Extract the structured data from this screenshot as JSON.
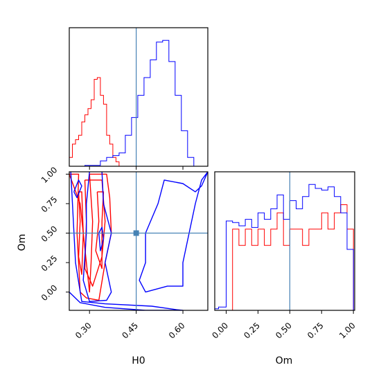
{
  "chart_data": {
    "type": "corner",
    "parameters": [
      "H0",
      "Om"
    ],
    "truths": {
      "H0": 0.45,
      "Om": 0.5
    },
    "truth_color": "#4682b4",
    "series": [
      {
        "color": "#ff0000"
      },
      {
        "color": "#0000ff"
      }
    ],
    "panels": [
      {
        "id": "hist-h0",
        "kind": "histogram",
        "xlim": [
          0.235,
          0.68
        ],
        "x_ticks": [
          0.3,
          0.45,
          0.6
        ],
        "series": [
          {
            "color": "#ff0000",
            "bin_edges": [
              0.235,
              0.245,
              0.255,
              0.265,
              0.275,
              0.285,
              0.295,
              0.305,
              0.315,
              0.325,
              0.335,
              0.345,
              0.355,
              0.365,
              0.375,
              0.385,
              0.395
            ],
            "counts": [
              10,
              25,
              30,
              35,
              50,
              58,
              65,
              75,
              98,
              100,
              80,
              70,
              35,
              25,
              10,
              5
            ]
          },
          {
            "color": "#0000ff",
            "bin_edges": [
              0.285,
              0.335,
              0.355,
              0.375,
              0.395,
              0.415,
              0.435,
              0.455,
              0.475,
              0.495,
              0.515,
              0.535,
              0.555,
              0.575,
              0.595,
              0.615,
              0.635
            ],
            "counts": [
              1,
              6,
              10,
              12,
              15,
              35,
              55,
              80,
              100,
              120,
              140,
              142,
              118,
              80,
              40,
              10
            ]
          }
        ]
      },
      {
        "id": "hist-om",
        "kind": "histogram",
        "xlim": [
          -0.09,
          1.01
        ],
        "x_ticks": [
          0.0,
          0.25,
          0.5,
          0.75,
          1.0
        ],
        "x_tick_labels": [
          "0.00",
          "0.25",
          "0.50",
          "0.75",
          "1.00"
        ],
        "series": [
          {
            "color": "#ff0000",
            "bin_edges": [
              0.0,
              0.05,
              0.1,
              0.15,
              0.2,
              0.25,
              0.3,
              0.35,
              0.4,
              0.45,
              0.5,
              0.55,
              0.6,
              0.65,
              0.7,
              0.75,
              0.8,
              0.85,
              0.9,
              0.95,
              1.0
            ],
            "counts": [
              0,
              100,
              80,
              100,
              80,
              100,
              80,
              100,
              120,
              80,
              100,
              100,
              80,
              100,
              100,
              120,
              100,
              120,
              130,
              100
            ]
          },
          {
            "color": "#0000ff",
            "bin_edges": [
              -0.09,
              -0.06,
              -0.01,
              0.0,
              0.05,
              0.1,
              0.15,
              0.2,
              0.25,
              0.3,
              0.35,
              0.4,
              0.45,
              0.5,
              0.55,
              0.6,
              0.65,
              0.7,
              0.75,
              0.8,
              0.85,
              0.9,
              0.95,
              1.0
            ],
            "counts": [
              2,
              4,
              4,
              110,
              108,
              104,
              112,
              102,
              120,
              112,
              125,
              142,
              112,
              135,
              125,
              140,
              155,
              150,
              148,
              152,
              140,
              120,
              75
            ]
          }
        ]
      },
      {
        "id": "contour-h0-om",
        "kind": "contour",
        "x": "H0",
        "y": "Om",
        "xlim": [
          0.235,
          0.68
        ],
        "ylim": [
          -0.155,
          1.02
        ],
        "x_ticks": [
          0.3,
          0.45,
          0.6
        ],
        "x_tick_labels": [
          "0.30",
          "0.45",
          "0.60"
        ],
        "y_ticks": [
          0.0,
          0.25,
          0.5,
          0.75,
          1.0
        ],
        "y_tick_labels": [
          "0.00",
          "0.25",
          "0.50",
          "0.75",
          "1.00"
        ],
        "xlabel": "H0",
        "ylabel": "Om",
        "contours": [
          {
            "color": "#ff0000",
            "points": [
              [
                0.235,
                1.0
              ],
              [
                0.265,
                1.0
              ],
              [
                0.26,
                0.5
              ],
              [
                0.27,
                0.0
              ],
              [
                0.29,
                -0.05
              ],
              [
                0.33,
                -0.07
              ],
              [
                0.35,
                0.25
              ],
              [
                0.37,
                0.5
              ],
              [
                0.365,
                0.8
              ],
              [
                0.355,
                1.0
              ],
              [
                0.3,
                1.0
              ],
              [
                0.31,
                0.6
              ],
              [
                0.305,
                0.25
              ],
              [
                0.3,
                0.0
              ],
              [
                0.29,
                0.25
              ],
              [
                0.28,
                0.5
              ],
              [
                0.27,
                0.75
              ],
              [
                0.235,
                1.0
              ]
            ]
          },
          {
            "color": "#ff0000",
            "points": [
              [
                0.285,
                0.95
              ],
              [
                0.29,
                0.6
              ],
              [
                0.285,
                0.2
              ],
              [
                0.31,
                0.05
              ],
              [
                0.34,
                0.3
              ],
              [
                0.35,
                0.6
              ],
              [
                0.34,
                0.95
              ],
              [
                0.285,
                0.95
              ]
            ]
          },
          {
            "color": "#ff0000",
            "points": [
              [
                0.325,
                0.85
              ],
              [
                0.33,
                0.6
              ],
              [
                0.32,
                0.35
              ],
              [
                0.34,
                0.2
              ],
              [
                0.34,
                0.6
              ],
              [
                0.345,
                0.85
              ],
              [
                0.325,
                0.85
              ]
            ]
          },
          {
            "color": "#ff0000",
            "points": [
              [
                0.265,
                0.85
              ],
              [
                0.27,
                0.6
              ],
              [
                0.265,
                0.3
              ],
              [
                0.275,
                0.15
              ],
              [
                0.28,
                0.5
              ],
              [
                0.275,
                0.85
              ],
              [
                0.265,
                0.85
              ]
            ]
          },
          {
            "color": "#0000ff",
            "points": [
              [
                0.24,
                1.02
              ],
              [
                0.255,
                0.25
              ],
              [
                0.275,
                -0.08
              ],
              [
                0.35,
                -0.1
              ],
              [
                0.5,
                -0.12
              ],
              [
                0.58,
                -0.15
              ],
              [
                0.6,
                -0.155
              ],
              [
                0.48,
                -0.155
              ],
              [
                0.35,
                -0.13
              ],
              [
                0.27,
                -0.09
              ],
              [
                0.235,
                0.0
              ]
            ]
          },
          {
            "color": "#0000ff",
            "points": [
              [
                0.34,
                1.02
              ],
              [
                0.345,
                0.75
              ],
              [
                0.37,
                0.5
              ],
              [
                0.35,
                0.25
              ],
              [
                0.37,
                0.0
              ],
              [
                0.355,
                -0.07
              ],
              [
                0.3,
                -0.08
              ],
              [
                0.28,
                0.1
              ],
              [
                0.29,
                0.5
              ],
              [
                0.29,
                0.75
              ],
              [
                0.3,
                1.02
              ]
            ]
          },
          {
            "color": "#0000ff",
            "points": [
              [
                0.68,
                1.02
              ],
              [
                0.66,
                0.95
              ],
              [
                0.64,
                0.75
              ],
              [
                0.62,
                0.5
              ],
              [
                0.6,
                0.25
              ],
              [
                0.6,
                0.05
              ],
              [
                0.55,
                0.05
              ],
              [
                0.48,
                0.0
              ],
              [
                0.46,
                0.1
              ],
              [
                0.48,
                0.25
              ],
              [
                0.48,
                0.5
              ],
              [
                0.52,
                0.75
              ],
              [
                0.54,
                0.95
              ],
              [
                0.6,
                0.92
              ],
              [
                0.64,
                0.85
              ],
              [
                0.66,
                0.9
              ],
              [
                0.68,
                1.02
              ]
            ]
          },
          {
            "color": "#0000ff",
            "points": [
              [
                0.25,
                0.85
              ],
              [
                0.26,
                0.8
              ],
              [
                0.275,
                0.9
              ],
              [
                0.265,
                0.95
              ],
              [
                0.25,
                0.85
              ]
            ]
          },
          {
            "color": "#0000ff",
            "points": [
              [
                0.33,
                0.5
              ],
              [
                0.335,
                0.35
              ],
              [
                0.345,
                0.45
              ],
              [
                0.34,
                0.55
              ],
              [
                0.33,
                0.5
              ]
            ]
          }
        ]
      }
    ]
  }
}
